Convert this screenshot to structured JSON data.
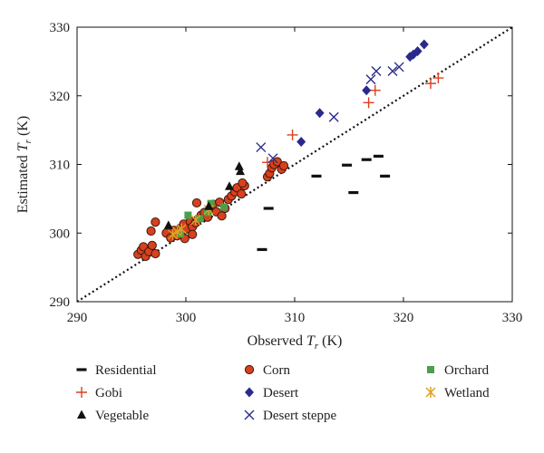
{
  "chart_data": {
    "type": "scatter",
    "title": "",
    "xlabel": "Observed",
    "xlabel_var": "T",
    "xlabel_sub": "r",
    "xlabel_unit": "(K)",
    "ylabel": "Estimated",
    "ylabel_var": "T",
    "ylabel_sub": "r",
    "ylabel_unit": "(K)",
    "xlim": [
      290,
      330
    ],
    "ylim": [
      290,
      330
    ],
    "xticks": [
      290,
      300,
      310,
      320,
      330
    ],
    "yticks": [
      290,
      300,
      310,
      320,
      330
    ],
    "grid": false,
    "one_to_one_line": true,
    "legend_position": "bottom",
    "series": [
      {
        "name": "Residential",
        "marker": "dash",
        "color": "#111111",
        "points": [
          [
            307.0,
            297.6
          ],
          [
            307.6,
            303.6
          ],
          [
            312.0,
            308.3
          ],
          [
            314.8,
            309.9
          ],
          [
            315.4,
            305.9
          ],
          [
            316.6,
            310.7
          ],
          [
            317.7,
            311.2
          ],
          [
            318.3,
            308.3
          ]
        ]
      },
      {
        "name": "Corn",
        "marker": "circle",
        "color": "#d9401e",
        "points": [
          [
            295.6,
            296.9
          ],
          [
            295.9,
            297.5
          ],
          [
            296.1,
            298.0
          ],
          [
            296.3,
            296.6
          ],
          [
            296.6,
            297.3
          ],
          [
            296.9,
            298.2
          ],
          [
            297.2,
            297.0
          ],
          [
            296.8,
            300.3
          ],
          [
            297.2,
            301.6
          ],
          [
            298.2,
            300.0
          ],
          [
            298.6,
            299.3
          ],
          [
            298.9,
            300.4
          ],
          [
            299.2,
            299.6
          ],
          [
            299.5,
            300.7
          ],
          [
            299.8,
            301.3
          ],
          [
            300.1,
            300.6
          ],
          [
            300.4,
            301.7
          ],
          [
            300.6,
            300.9
          ],
          [
            300.9,
            301.5
          ],
          [
            301.1,
            302.0
          ],
          [
            301.0,
            304.4
          ],
          [
            301.4,
            302.6
          ],
          [
            301.7,
            303.0
          ],
          [
            302.0,
            302.3
          ],
          [
            302.2,
            303.4
          ],
          [
            302.5,
            304.2
          ],
          [
            302.8,
            303.1
          ],
          [
            303.1,
            304.5
          ],
          [
            303.3,
            302.5
          ],
          [
            303.6,
            303.6
          ],
          [
            303.9,
            304.9
          ],
          [
            304.2,
            305.4
          ],
          [
            304.5,
            306.0
          ],
          [
            304.7,
            306.6
          ],
          [
            305.1,
            305.7
          ],
          [
            305.4,
            306.9
          ],
          [
            305.2,
            307.3
          ],
          [
            307.5,
            308.2
          ],
          [
            307.7,
            308.7
          ],
          [
            307.9,
            309.5
          ],
          [
            308.1,
            310.0
          ],
          [
            308.4,
            310.4
          ],
          [
            308.8,
            309.3
          ],
          [
            309.0,
            309.8
          ],
          [
            300.6,
            299.8
          ],
          [
            299.9,
            299.2
          ]
        ]
      },
      {
        "name": "Orchard",
        "marker": "square",
        "color": "#4aa04a",
        "points": [
          [
            299.5,
            299.9
          ],
          [
            300.2,
            302.6
          ],
          [
            301.3,
            302.1
          ],
          [
            302.3,
            304.3
          ],
          [
            303.5,
            303.8
          ],
          [
            302.0,
            303.0
          ]
        ]
      },
      {
        "name": "Gobi",
        "marker": "plus",
        "color": "#d9401e",
        "points": [
          [
            307.5,
            310.3
          ],
          [
            309.8,
            314.3
          ],
          [
            316.8,
            319.0
          ],
          [
            317.4,
            320.8
          ],
          [
            322.5,
            321.8
          ],
          [
            323.2,
            322.6
          ]
        ]
      },
      {
        "name": "Desert",
        "marker": "diamond",
        "color": "#2a2a8c",
        "points": [
          [
            310.6,
            313.3
          ],
          [
            312.3,
            317.5
          ],
          [
            316.6,
            320.8
          ],
          [
            320.6,
            325.7
          ],
          [
            320.9,
            326.0
          ],
          [
            321.3,
            326.5
          ],
          [
            321.9,
            327.5
          ]
        ]
      },
      {
        "name": "Wetland",
        "marker": "asterisk",
        "color": "#e0a020",
        "points": [
          [
            298.8,
            299.8
          ],
          [
            299.6,
            300.6
          ],
          [
            300.9,
            301.9
          ],
          [
            302.1,
            303.4
          ],
          [
            299.2,
            300.2
          ]
        ]
      },
      {
        "name": "Vegetable",
        "marker": "triangle",
        "color": "#111111",
        "points": [
          [
            298.4,
            301.1
          ],
          [
            304.0,
            306.8
          ],
          [
            304.9,
            309.7
          ],
          [
            305.0,
            309.0
          ],
          [
            302.1,
            303.9
          ]
        ]
      },
      {
        "name": "Desert steppe",
        "marker": "x",
        "color": "#2a2a8c",
        "points": [
          [
            306.9,
            312.5
          ],
          [
            308.0,
            310.9
          ],
          [
            313.6,
            316.9
          ],
          [
            317.0,
            322.4
          ],
          [
            317.5,
            323.6
          ],
          [
            319.0,
            323.6
          ],
          [
            319.6,
            324.2
          ]
        ]
      }
    ]
  }
}
